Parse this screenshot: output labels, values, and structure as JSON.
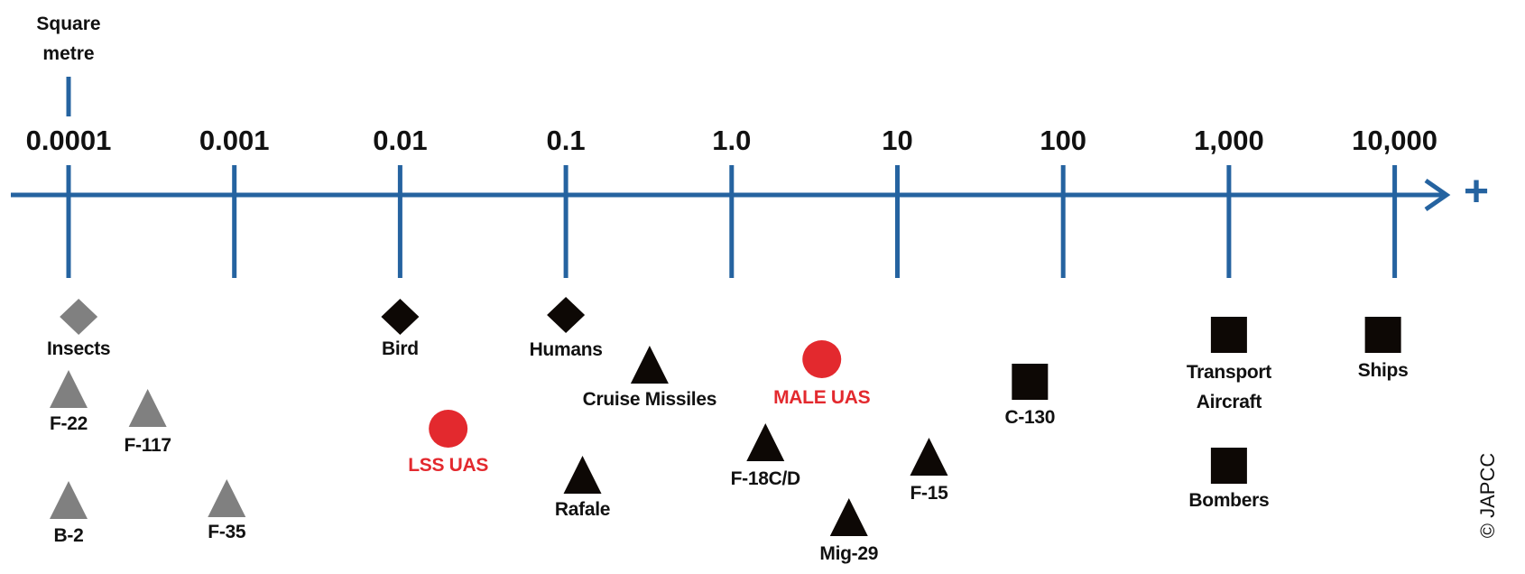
{
  "chart_data": {
    "type": "scatter",
    "title": "",
    "xlabel": "Square metre",
    "xscale": "log",
    "xlim": [
      0.0001,
      10000
    ],
    "axis_end_symbol": "+",
    "ticks": [
      {
        "value": 0.0001,
        "label": "0.0001"
      },
      {
        "value": 0.001,
        "label": "0.001"
      },
      {
        "value": 0.01,
        "label": "0.01"
      },
      {
        "value": 0.1,
        "label": "0.1"
      },
      {
        "value": 1,
        "label": "1.0"
      },
      {
        "value": 10,
        "label": "10"
      },
      {
        "value": 100,
        "label": "100"
      },
      {
        "value": 1000,
        "label": "1,000"
      },
      {
        "value": 10000,
        "label": "10,000"
      }
    ],
    "items": [
      {
        "id": "insects",
        "label": [
          "Insects"
        ],
        "value": 0.000115,
        "shape": "diamond",
        "group": "gray"
      },
      {
        "id": "f22",
        "label": [
          "F-22"
        ],
        "value": 0.0001,
        "shape": "triangle",
        "group": "gray"
      },
      {
        "id": "f117",
        "label": [
          "F-117"
        ],
        "value": 0.0003,
        "shape": "triangle",
        "group": "gray"
      },
      {
        "id": "b2",
        "label": [
          "B-2"
        ],
        "value": 0.0001,
        "shape": "triangle",
        "group": "gray"
      },
      {
        "id": "f35",
        "label": [
          "F-35"
        ],
        "value": 0.0009,
        "shape": "triangle",
        "group": "gray"
      },
      {
        "id": "bird",
        "label": [
          "Bird"
        ],
        "value": 0.01,
        "shape": "diamond",
        "group": "black"
      },
      {
        "id": "humans",
        "label": [
          "Humans"
        ],
        "value": 0.1,
        "shape": "diamond",
        "group": "black"
      },
      {
        "id": "lss",
        "label": [
          "LSS UAS"
        ],
        "value": 0.0195,
        "shape": "circle",
        "group": "red"
      },
      {
        "id": "cruise",
        "label": [
          "Cruise Missiles"
        ],
        "value": 0.32,
        "shape": "triangle",
        "group": "black"
      },
      {
        "id": "rafale",
        "label": [
          "Rafale"
        ],
        "value": 0.126,
        "shape": "triangle",
        "group": "black"
      },
      {
        "id": "f18",
        "label": [
          "F-18C/D"
        ],
        "value": 1.6,
        "shape": "triangle",
        "group": "black"
      },
      {
        "id": "male",
        "label": [
          "MALE UAS"
        ],
        "value": 3.5,
        "shape": "circle",
        "group": "red"
      },
      {
        "id": "mig29",
        "label": [
          "Mig-29"
        ],
        "value": 5.1,
        "shape": "triangle",
        "group": "black"
      },
      {
        "id": "f15",
        "label": [
          "F-15"
        ],
        "value": 15.5,
        "shape": "triangle",
        "group": "black"
      },
      {
        "id": "c130",
        "label": [
          "C-130"
        ],
        "value": 63,
        "shape": "square",
        "group": "black"
      },
      {
        "id": "transport",
        "label": [
          "Transport",
          "Aircraft"
        ],
        "value": 1000,
        "shape": "square",
        "group": "black"
      },
      {
        "id": "ships",
        "label": [
          "Ships"
        ],
        "value": 8500,
        "shape": "square",
        "group": "black"
      },
      {
        "id": "bombers",
        "label": [
          "Bombers"
        ],
        "value": 1000,
        "shape": "square",
        "group": "black"
      }
    ],
    "grid": false,
    "legend": "none"
  },
  "copyright": "© JAPCC",
  "colors": {
    "axis": "#2563a0",
    "gray": "#808080",
    "black": "#0d0805",
    "red": "#e3292e"
  }
}
